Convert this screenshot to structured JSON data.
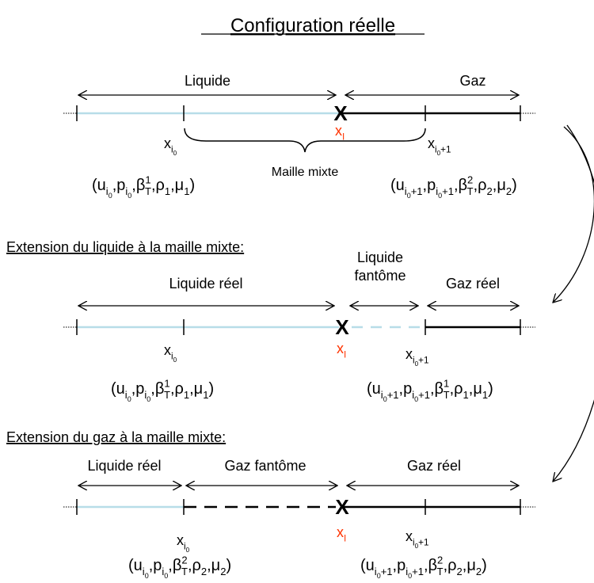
{
  "title": "Configuration réelle",
  "rows": [
    {
      "segments": [
        {
          "lines": [
            "Liquide"
          ]
        },
        {
          "lines": [
            "Gaz"
          ]
        }
      ],
      "interface": "X",
      "x_left": [
        [
          "x",
          "base"
        ],
        [
          "i",
          "sub"
        ],
        [
          "0",
          "subsub"
        ]
      ],
      "x_interface": [
        [
          "x",
          "base"
        ],
        [
          "I",
          "sub"
        ]
      ],
      "x_right": [
        [
          "x",
          "base"
        ],
        [
          "i",
          "sub"
        ],
        [
          "0",
          "subsub"
        ],
        [
          "+1",
          "sub"
        ]
      ],
      "cell": "Maille mixte",
      "left_tuple": [
        [
          "(u",
          "base"
        ],
        [
          "i",
          "sub"
        ],
        [
          "0",
          "subsub"
        ],
        [
          ",p",
          "base"
        ],
        [
          "i",
          "sub"
        ],
        [
          "0",
          "subsub"
        ],
        [
          ",β",
          "base"
        ],
        [
          "1",
          "sup"
        ],
        [
          "T",
          "sub"
        ],
        [
          ",ρ",
          "base"
        ],
        [
          "1",
          "sub"
        ],
        [
          ",μ",
          "base"
        ],
        [
          "1",
          "sub"
        ],
        [
          ")",
          "base"
        ]
      ],
      "right_tuple": [
        [
          "(u",
          "base"
        ],
        [
          "i",
          "sub"
        ],
        [
          "0",
          "subsub"
        ],
        [
          "+1",
          "sub"
        ],
        [
          ",p",
          "base"
        ],
        [
          "i",
          "sub"
        ],
        [
          "0",
          "subsub"
        ],
        [
          "+1",
          "sub"
        ],
        [
          ",β",
          "base"
        ],
        [
          "2",
          "sup"
        ],
        [
          "T",
          "sub"
        ],
        [
          ",ρ",
          "base"
        ],
        [
          "2",
          "sub"
        ],
        [
          ",μ",
          "base"
        ],
        [
          "2",
          "sub"
        ],
        [
          ")",
          "base"
        ]
      ]
    },
    {
      "heading": "Extension du liquide à la maille mixte:",
      "segments": [
        {
          "lines": [
            "Liquide réel"
          ]
        },
        {
          "lines": [
            "Liquide",
            "fantôme"
          ]
        },
        {
          "lines": [
            "Gaz réel"
          ]
        }
      ],
      "interface": "X",
      "x_left": [
        [
          "x",
          "base"
        ],
        [
          "i",
          "sub"
        ],
        [
          "0",
          "subsub"
        ]
      ],
      "x_interface": [
        [
          "x",
          "base"
        ],
        [
          "I",
          "sub"
        ]
      ],
      "x_right": [
        [
          "x",
          "base"
        ],
        [
          "i",
          "sub"
        ],
        [
          "0",
          "subsub"
        ],
        [
          "+1",
          "sub"
        ]
      ],
      "left_tuple": [
        [
          "(u",
          "base"
        ],
        [
          "i",
          "sub"
        ],
        [
          "0",
          "subsub"
        ],
        [
          ",p",
          "base"
        ],
        [
          "i",
          "sub"
        ],
        [
          "0",
          "subsub"
        ],
        [
          ",β",
          "base"
        ],
        [
          "1",
          "sup"
        ],
        [
          "T",
          "sub"
        ],
        [
          ",ρ",
          "base"
        ],
        [
          "1",
          "sub"
        ],
        [
          ",μ",
          "base"
        ],
        [
          "1",
          "sub"
        ],
        [
          ")",
          "base"
        ]
      ],
      "right_tuple": [
        [
          "(u",
          "base"
        ],
        [
          "i",
          "sub"
        ],
        [
          "0",
          "subsub"
        ],
        [
          "+1",
          "sub"
        ],
        [
          ",p",
          "base"
        ],
        [
          "i",
          "sub"
        ],
        [
          "0",
          "subsub"
        ],
        [
          "+1",
          "sub"
        ],
        [
          ",β",
          "base"
        ],
        [
          "1",
          "sup"
        ],
        [
          "T",
          "sub"
        ],
        [
          ",ρ",
          "base"
        ],
        [
          "1",
          "sub"
        ],
        [
          ",μ",
          "base"
        ],
        [
          "1",
          "sub"
        ],
        [
          ")",
          "base"
        ]
      ]
    },
    {
      "heading": "Extension du gaz à la maille mixte:",
      "segments": [
        {
          "lines": [
            "Liquide réel"
          ]
        },
        {
          "lines": [
            "Gaz fantôme"
          ]
        },
        {
          "lines": [
            "Gaz réel"
          ]
        }
      ],
      "interface": "X",
      "x_left": [
        [
          "x",
          "base"
        ],
        [
          "i",
          "sub"
        ],
        [
          "0",
          "subsub"
        ]
      ],
      "x_interface": [
        [
          "x",
          "base"
        ],
        [
          "I",
          "sub"
        ]
      ],
      "x_right": [
        [
          "x",
          "base"
        ],
        [
          "i",
          "sub"
        ],
        [
          "0",
          "subsub"
        ],
        [
          "+1",
          "sub"
        ]
      ],
      "left_tuple": [
        [
          "(u",
          "base"
        ],
        [
          "i",
          "sub"
        ],
        [
          "0",
          "subsub"
        ],
        [
          ",p",
          "base"
        ],
        [
          "i",
          "sub"
        ],
        [
          "0",
          "subsub"
        ],
        [
          ",β",
          "base"
        ],
        [
          "2",
          "sup"
        ],
        [
          "T",
          "sub"
        ],
        [
          ",ρ",
          "base"
        ],
        [
          "2",
          "sub"
        ],
        [
          ",μ",
          "base"
        ],
        [
          "2",
          "sub"
        ],
        [
          ")",
          "base"
        ]
      ],
      "right_tuple": [
        [
          "(u",
          "base"
        ],
        [
          "i",
          "sub"
        ],
        [
          "0",
          "subsub"
        ],
        [
          "+1",
          "sub"
        ],
        [
          ",p",
          "base"
        ],
        [
          "i",
          "sub"
        ],
        [
          "0",
          "subsub"
        ],
        [
          "+1",
          "sub"
        ],
        [
          ",β",
          "base"
        ],
        [
          "2",
          "sup"
        ],
        [
          "T",
          "sub"
        ],
        [
          ",ρ",
          "base"
        ],
        [
          "2",
          "sub"
        ],
        [
          ",μ",
          "base"
        ],
        [
          "2",
          "sub"
        ],
        [
          ")",
          "base"
        ]
      ]
    }
  ]
}
